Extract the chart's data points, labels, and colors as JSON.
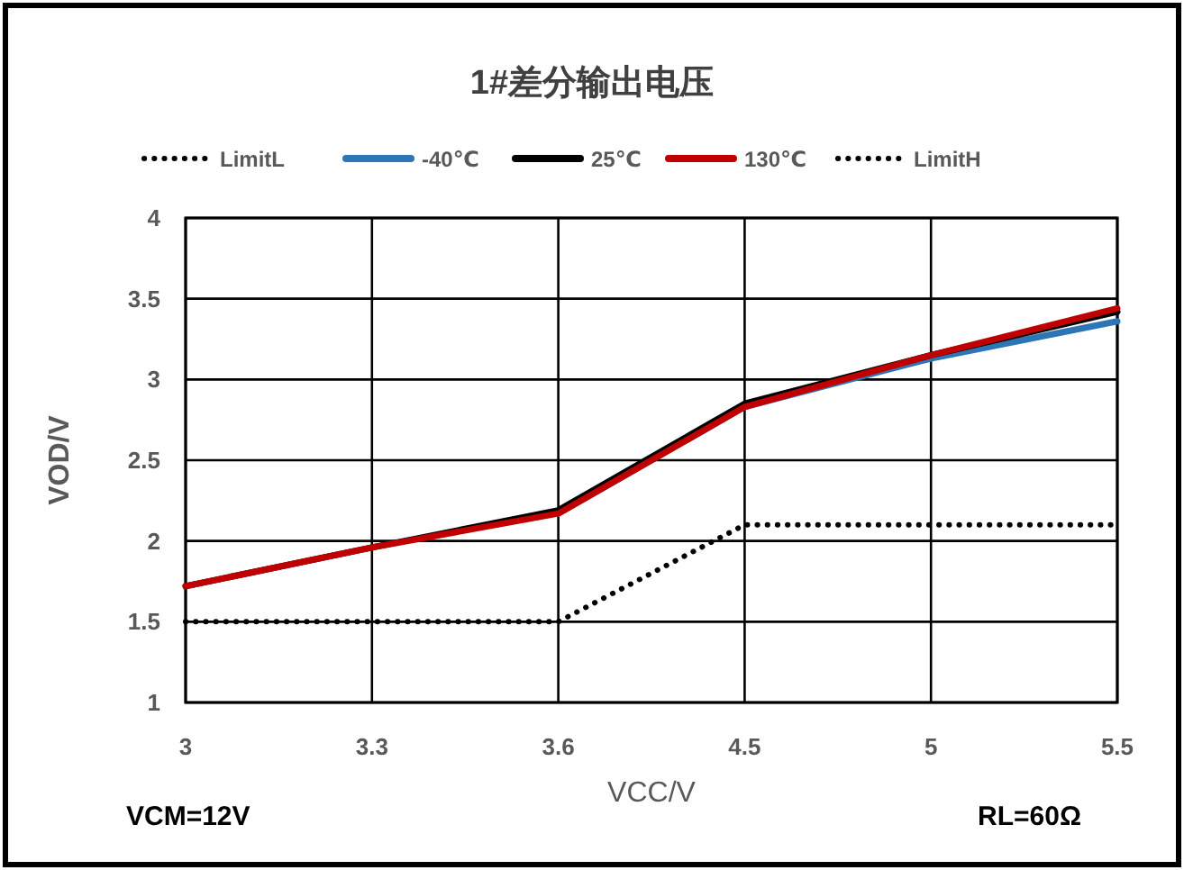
{
  "chart_data": {
    "type": "line",
    "title": "1#差分输出电压",
    "xlabel": "VCC/V",
    "ylabel": "VOD/V",
    "categories": [
      "3",
      "3.3",
      "3.6",
      "4.5",
      "5",
      "5.5"
    ],
    "series": [
      {
        "name": "LimitL",
        "color": "#000000",
        "line_style": "dotted",
        "values": [
          1.5,
          1.5,
          1.5,
          2.1,
          2.1,
          2.1
        ]
      },
      {
        "name": "-40℃",
        "color": "#2e75b6",
        "line_style": "solid",
        "values": [
          null,
          null,
          2.17,
          2.83,
          3.13,
          3.36
        ]
      },
      {
        "name": "25℃",
        "color": "#000000",
        "line_style": "solid",
        "values": [
          1.72,
          1.96,
          2.19,
          2.85,
          3.15,
          3.42
        ]
      },
      {
        "name": "130℃",
        "color": "#c00000",
        "line_style": "solid",
        "values": [
          1.72,
          1.96,
          2.17,
          2.83,
          3.15,
          3.44
        ]
      },
      {
        "name": "LimitH",
        "color": "#000000",
        "line_style": "dotted",
        "values": [
          null,
          null,
          null,
          null,
          null,
          null
        ]
      }
    ],
    "ylim": [
      1,
      4
    ],
    "yticks": [
      1,
      1.5,
      2,
      2.5,
      3,
      3.5,
      4
    ],
    "grid": true,
    "legend": "top",
    "annotations": [
      "VCM=12V",
      "RL=60Ω"
    ]
  }
}
